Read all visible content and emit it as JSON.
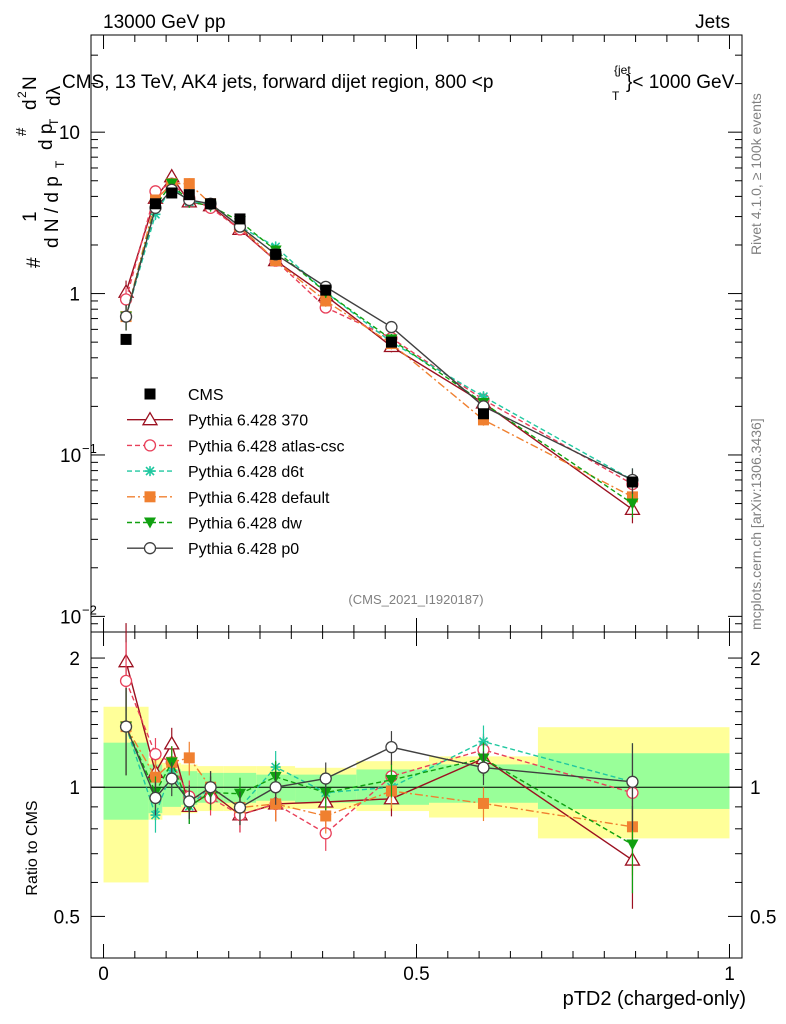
{
  "header": {
    "left": "13000 GeV pp",
    "right": "Jets"
  },
  "chart_data": {
    "type": "line",
    "title": "CMS, 13 TeV, AK4 jets, forward dijet region, 800 <p",
    "title_sup": "{jet",
    "title_sub": "T",
    "title_end": "}< 1000 GeV",
    "ylabel_parts": [
      "#",
      "1",
      "d N / d p",
      "T",
      "#",
      "d p",
      "T",
      "d",
      "2",
      "N",
      "dλ"
    ],
    "xlabel": "pTD2 (charged-only)",
    "ratio_ylabel": "Ratio to CMS",
    "analysis_tag": "(CMS_2021_I1920187)",
    "side_label_top": "Rivet 4.1.0, ≥ 100k events",
    "side_label_bottom": "mcplots.cern.ch [arXiv:1306.3436]",
    "xlim": [
      -0.02,
      1.02
    ],
    "ylim_main": [
      0.008,
      40
    ],
    "ylim_ratio": [
      0.4,
      2.3
    ],
    "x_ticks": [
      "0",
      "0.5",
      "1"
    ],
    "y_ticks_main": [
      {
        "base": "10",
        "exp": "−2",
        "value": 0.01
      },
      {
        "base": "10",
        "exp": "−1",
        "value": 0.1
      },
      {
        "base": "1",
        "exp": "",
        "value": 1
      },
      {
        "base": "10",
        "exp": "",
        "value": 10
      }
    ],
    "y_ticks_ratio": [
      "0.5",
      "1",
      "2"
    ],
    "x": [
      0.036,
      0.083,
      0.109,
      0.137,
      0.171,
      0.218,
      0.275,
      0.355,
      0.46,
      0.607,
      0.845
    ],
    "bin_edges": [
      0,
      0.072,
      0.094,
      0.124,
      0.15,
      0.192,
      0.244,
      0.306,
      0.404,
      0.52,
      0.694,
      1.0
    ],
    "data": {
      "name": "CMS",
      "values": [
        0.52,
        3.6,
        4.2,
        4.1,
        3.6,
        2.9,
        1.75,
        1.05,
        0.5,
        0.18,
        0.068
      ]
    },
    "uncertainty_bands": {
      "inner": [
        [
          0.84,
          1.27
        ],
        [
          0.87,
          1.13
        ],
        [
          0.9,
          1.1
        ],
        [
          0.91,
          1.09
        ],
        [
          0.92,
          1.08
        ],
        [
          0.92,
          1.08
        ],
        [
          0.93,
          1.07
        ],
        [
          0.92,
          1.07
        ],
        [
          0.91,
          1.1
        ],
        [
          0.92,
          1.13
        ],
        [
          0.89,
          1.2
        ]
      ],
      "outer": [
        [
          0.6,
          1.54
        ],
        [
          0.84,
          1.17
        ],
        [
          0.86,
          1.14
        ],
        [
          0.87,
          1.13
        ],
        [
          0.88,
          1.12
        ],
        [
          0.88,
          1.12
        ],
        [
          0.89,
          1.12
        ],
        [
          0.89,
          1.11
        ],
        [
          0.88,
          1.15
        ],
        [
          0.85,
          1.18
        ],
        [
          0.76,
          1.38
        ]
      ]
    },
    "series": [
      {
        "name": "Pythia 6.428 370",
        "color": "#9b1020",
        "marker": "triangle-open",
        "dash": "",
        "values": [
          1.02,
          3.9,
          5.3,
          3.7,
          3.5,
          2.5,
          1.6,
          0.97,
          0.47,
          0.21,
          0.046
        ]
      },
      {
        "name": "Pythia 6.428 atlas-csc",
        "color": "#e8405a",
        "marker": "circle-open",
        "dash": "5,3",
        "values": [
          0.92,
          4.3,
          4.8,
          3.9,
          3.4,
          2.5,
          1.6,
          0.82,
          0.53,
          0.22,
          0.066
        ]
      },
      {
        "name": "Pythia 6.428 d6t",
        "color": "#20c8a0",
        "marker": "star",
        "dash": "5,3",
        "values": [
          0.72,
          3.1,
          4.6,
          3.7,
          3.6,
          2.6,
          1.95,
          1.02,
          0.5,
          0.23,
          0.07
        ]
      },
      {
        "name": "Pythia 6.428 default",
        "color": "#f08030",
        "marker": "square",
        "dash": "8,3,2,3",
        "values": [
          0.72,
          3.8,
          4.8,
          4.8,
          3.6,
          2.6,
          1.6,
          0.9,
          0.49,
          0.165,
          0.055
        ]
      },
      {
        "name": "Pythia 6.428 dw",
        "color": "#10a010",
        "marker": "triangle-down",
        "dash": "5,3",
        "values": [
          0.72,
          3.5,
          4.8,
          3.7,
          3.5,
          2.8,
          1.85,
          1.02,
          0.52,
          0.21,
          0.05
        ]
      },
      {
        "name": "Pythia 6.428 p0",
        "color": "#404040",
        "marker": "circle-open",
        "dash": "",
        "values": [
          0.72,
          3.4,
          4.4,
          3.8,
          3.6,
          2.6,
          1.75,
          1.1,
          0.62,
          0.2,
          0.07
        ]
      }
    ]
  }
}
